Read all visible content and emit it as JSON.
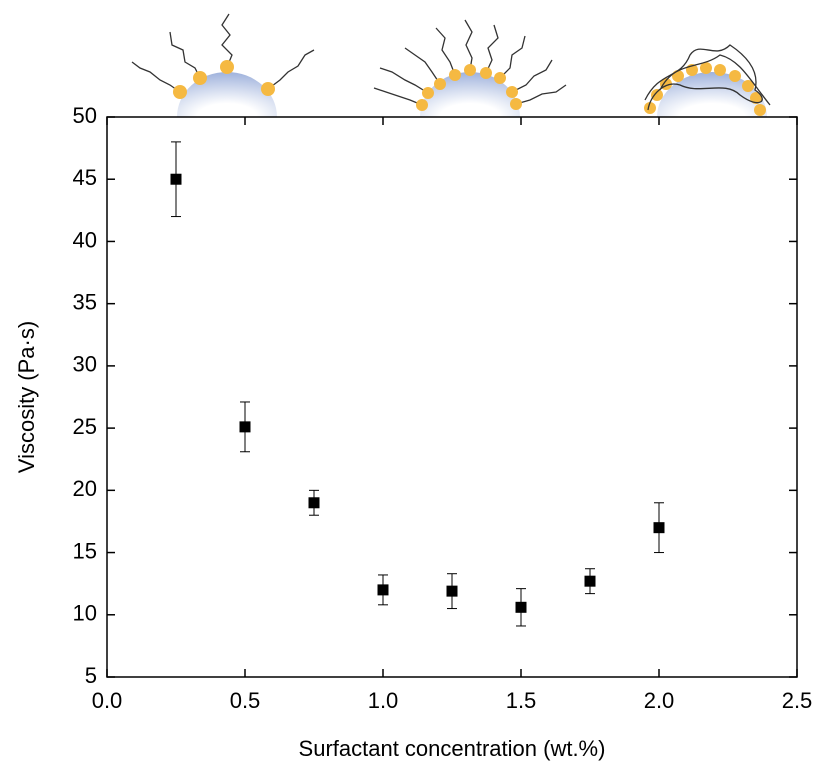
{
  "chart_data": {
    "type": "scatter",
    "x_label": "Surfactant concentration (wt.%)",
    "y_label": "Viscosity (Pa·s)",
    "x": [
      0.25,
      0.5,
      0.75,
      1.0,
      1.25,
      1.5,
      1.75,
      2.0
    ],
    "series": [
      {
        "color": "#000000",
        "values": [
          45,
          25.1,
          19,
          12,
          11.9,
          10.6,
          12.7,
          17
        ],
        "errors": [
          3,
          2,
          1,
          1.2,
          1.4,
          1.5,
          1,
          2
        ]
      }
    ],
    "xlim": [
      0,
      2.5
    ],
    "xticks": [
      {
        "value": 0,
        "label": "0.0"
      },
      0.5,
      {
        "value": 1,
        "label": "1.0"
      },
      1.5,
      {
        "value": 2,
        "label": "2.0"
      },
      2.5
    ],
    "ylim": [
      5,
      50
    ],
    "yticks": [
      5,
      10,
      15,
      20,
      25,
      30,
      35,
      40,
      45,
      50
    ]
  }
}
